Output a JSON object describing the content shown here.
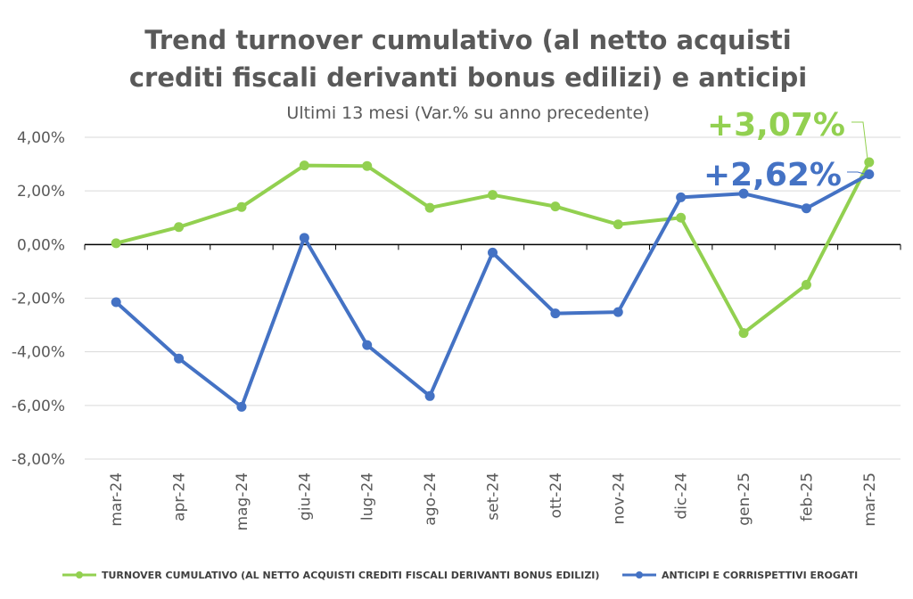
{
  "chart_data": {
    "type": "line",
    "title_line1": "Trend turnover cumulativo (al netto acquisti",
    "title_line2": "crediti fiscali derivanti bonus edilizi) e anticipi",
    "subtitle": "Ultimi 13 mesi (Var.% su anno precedente)",
    "categories": [
      "mar-24",
      "apr-24",
      "mag-24",
      "giu-24",
      "lug-24",
      "ago-24",
      "set-24",
      "ott-24",
      "nov-24",
      "dic-24",
      "gen-25",
      "feb-25",
      "mar-25"
    ],
    "yticks": [
      "4,00%",
      "2,00%",
      "0,00%",
      "-2,00%",
      "-4,00%",
      "-6,00%",
      "-8,00%"
    ],
    "ylim": [
      -8,
      4
    ],
    "grid": true,
    "legend_position": "bottom",
    "series": [
      {
        "name": "TURNOVER CUMULATIVO (AL NETTO ACQUISTI CREDITI FISCALI DERIVANTI BONUS EDILIZI)",
        "color": "#92D050",
        "values": [
          0.05,
          0.65,
          1.4,
          2.95,
          2.93,
          1.37,
          1.85,
          1.42,
          0.75,
          1.0,
          -3.3,
          -1.5,
          3.07
        ],
        "last_label": "+3,07%"
      },
      {
        "name": "ANTICIPI E CORRISPETTIVI EROGATI",
        "color": "#4472C4",
        "values": [
          -2.15,
          -4.25,
          -6.05,
          0.25,
          -3.75,
          -5.65,
          -0.3,
          -2.57,
          -2.52,
          1.76,
          1.9,
          1.35,
          2.62
        ],
        "last_label": "+2,62%"
      }
    ]
  }
}
